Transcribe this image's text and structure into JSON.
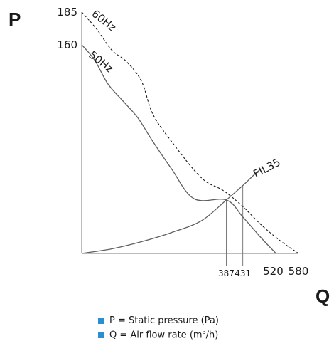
{
  "chart_data": {
    "type": "line",
    "xlim": [
      0,
      580
    ],
    "ylim": [
      0,
      185
    ],
    "axes": {
      "y_label": "P",
      "x_label": "Q"
    },
    "y_ticks": [
      {
        "value": 185,
        "label": "185"
      },
      {
        "value": 160,
        "label": "160"
      }
    ],
    "x_ticks": [
      {
        "value": 387,
        "label": "387"
      },
      {
        "value": 431,
        "label": "431"
      },
      {
        "value": 520,
        "label": "520"
      },
      {
        "value": 580,
        "label": "580"
      }
    ],
    "series": [
      {
        "name": "60Hz",
        "style": "dashed",
        "points": [
          [
            0,
            185
          ],
          [
            40,
            172
          ],
          [
            80,
            156
          ],
          [
            120,
            147
          ],
          [
            160,
            132
          ],
          [
            190,
            107
          ],
          [
            240,
            86
          ],
          [
            320,
            58
          ],
          [
            380,
            48
          ],
          [
            431,
            36
          ],
          [
            480,
            22
          ],
          [
            530,
            10
          ],
          [
            580,
            0
          ]
        ]
      },
      {
        "name": "50Hz",
        "style": "solid",
        "points": [
          [
            0,
            160
          ],
          [
            35,
            148
          ],
          [
            70,
            130
          ],
          [
            110,
            117
          ],
          [
            150,
            104
          ],
          [
            190,
            86
          ],
          [
            240,
            65
          ],
          [
            300,
            42
          ],
          [
            387,
            41
          ],
          [
            431,
            28
          ],
          [
            480,
            12
          ],
          [
            520,
            0
          ]
        ]
      },
      {
        "name": "FIL35",
        "style": "solid",
        "points": [
          [
            0,
            0
          ],
          [
            80,
            3.5
          ],
          [
            160,
            9
          ],
          [
            240,
            16
          ],
          [
            320,
            25
          ],
          [
            387,
            41
          ],
          [
            431,
            52
          ],
          [
            460,
            60
          ],
          [
            480,
            65
          ]
        ]
      }
    ],
    "operating_points": [
      {
        "x": 387,
        "y": 41
      },
      {
        "x": 431,
        "y": 52
      }
    ]
  },
  "legend": {
    "items": [
      {
        "text": "P = Static pressure (Pa)"
      },
      {
        "text_before": "Q = Air flow rate (m",
        "superscript": "3",
        "text_after": "/h)"
      }
    ]
  },
  "colors": {
    "legend_swatch": "#2a8fd0",
    "curve": "#5f5f5f",
    "axis": "#7a7a7a",
    "text": "#1a1a1a"
  }
}
